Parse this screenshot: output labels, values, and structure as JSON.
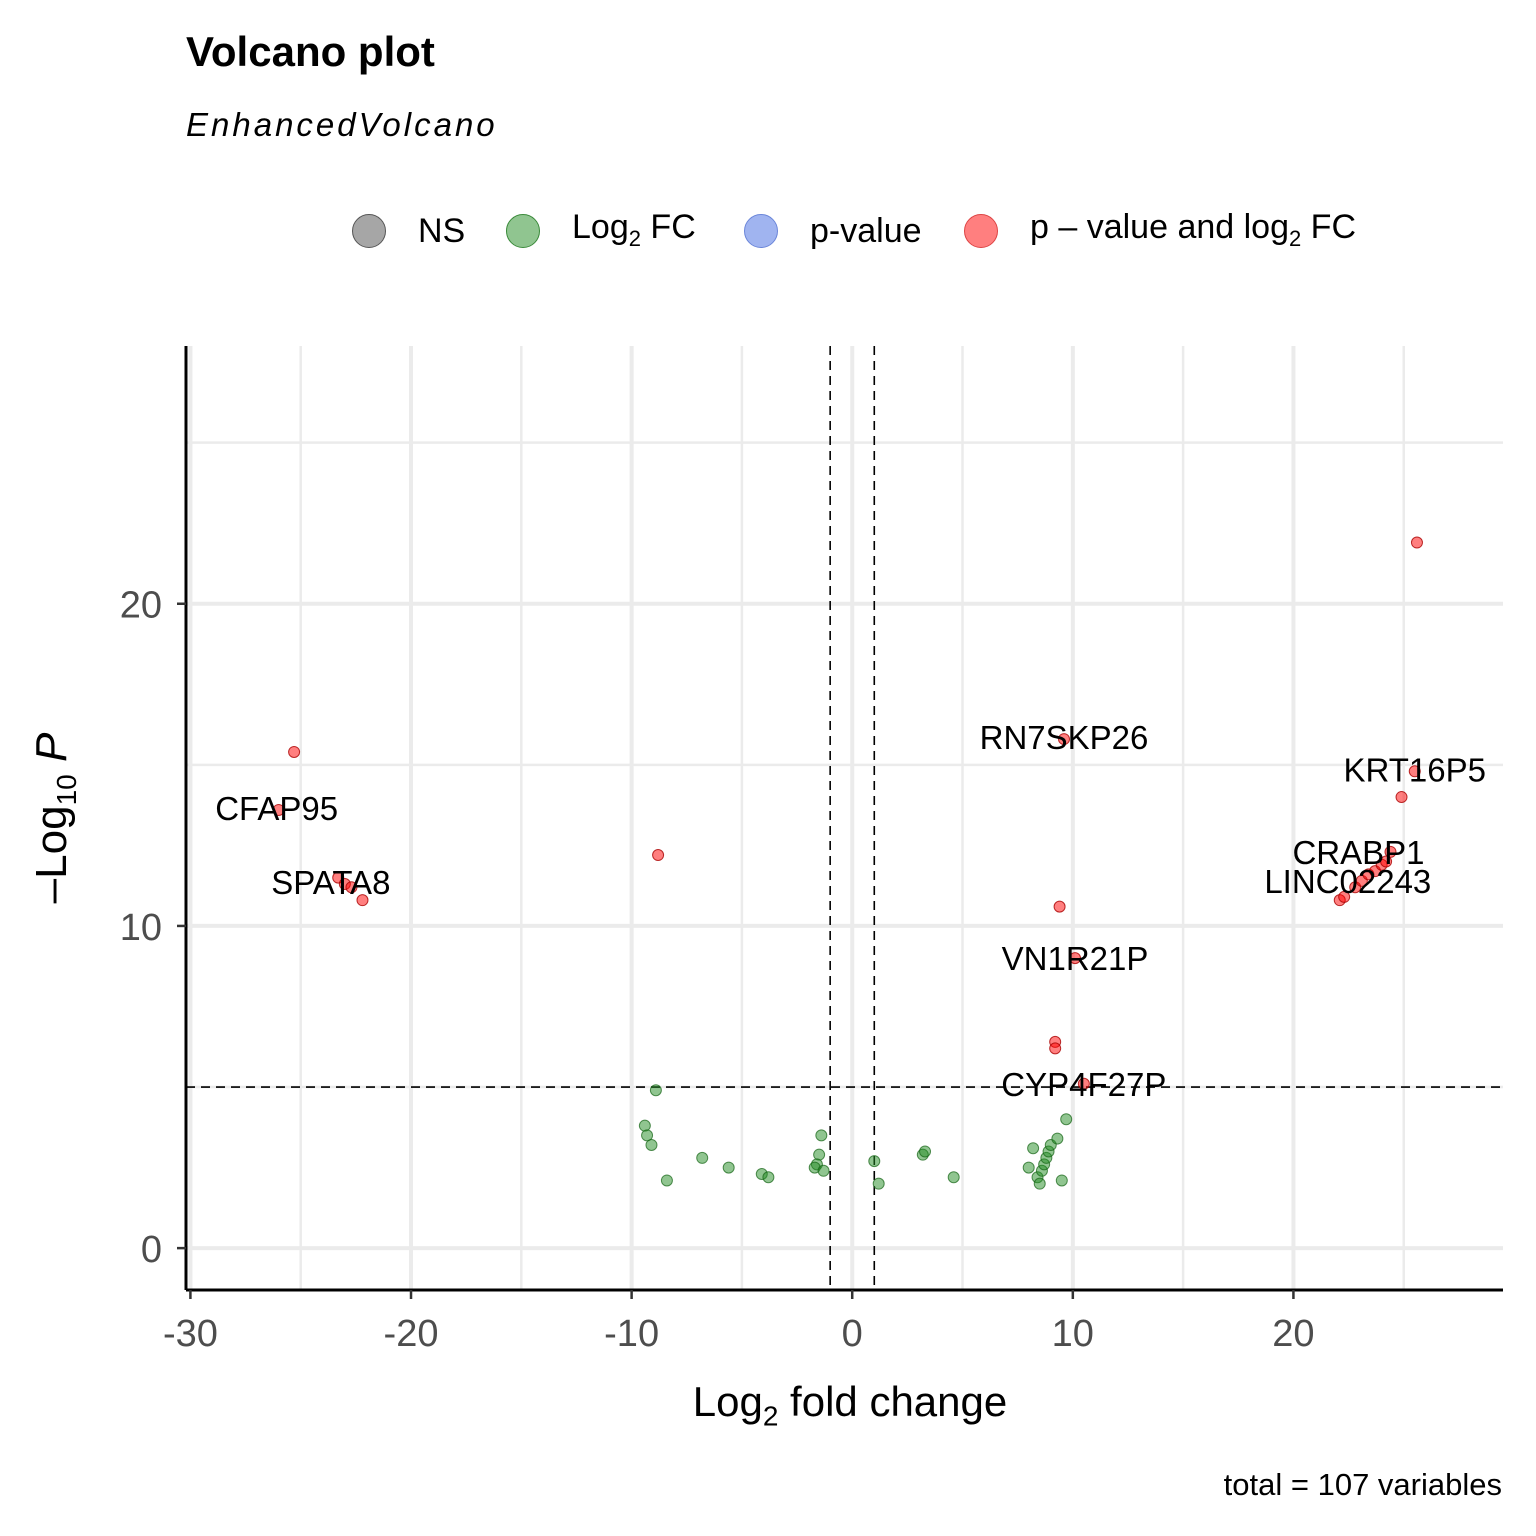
{
  "chart_data": {
    "type": "scatter",
    "title": "Volcano plot",
    "subtitle": "EnhancedVolcano",
    "xlabel": "Log2 fold change",
    "ylabel": "-Log10 P",
    "caption": "total = 107 variables",
    "xlim": [
      -30.2,
      29.5
    ],
    "ylim": [
      -1.3,
      28
    ],
    "xticks": [
      -30,
      -20,
      -10,
      0,
      10,
      20
    ],
    "yticks": [
      0,
      10,
      20
    ],
    "thresholds": {
      "fc_lines": [
        -1,
        1
      ],
      "p_line": 5
    },
    "grid": true,
    "legend_position": "top",
    "legend": [
      {
        "key": "NS",
        "label": "NS",
        "color": "#808080"
      },
      {
        "key": "FC",
        "label": "Log2 FC",
        "color": "#228B22"
      },
      {
        "key": "P",
        "label": "p-value",
        "color": "#4169E1"
      },
      {
        "key": "FC_P",
        "label": "p – value and log2 FC",
        "color": "#FF0000"
      }
    ],
    "series": [
      {
        "name": "Log2 FC",
        "points": [
          [
            -8.9,
            4.9
          ],
          [
            -9.4,
            3.8
          ],
          [
            -9.3,
            3.5
          ],
          [
            -9.1,
            3.2
          ],
          [
            -8.4,
            2.1
          ],
          [
            -6.8,
            2.8
          ],
          [
            -5.6,
            2.5
          ],
          [
            -4.1,
            2.3
          ],
          [
            -3.8,
            2.2
          ],
          [
            -1.4,
            3.5
          ],
          [
            -1.5,
            2.9
          ],
          [
            -1.6,
            2.6
          ],
          [
            -1.7,
            2.5
          ],
          [
            -1.3,
            2.4
          ],
          [
            1.0,
            2.7
          ],
          [
            1.2,
            2.0
          ],
          [
            3.2,
            2.9
          ],
          [
            3.3,
            3.0
          ],
          [
            4.6,
            2.2
          ],
          [
            8.0,
            2.5
          ],
          [
            8.2,
            3.1
          ],
          [
            8.4,
            2.2
          ],
          [
            8.5,
            2.0
          ],
          [
            8.6,
            2.4
          ],
          [
            8.7,
            2.6
          ],
          [
            8.8,
            2.8
          ],
          [
            8.9,
            3.0
          ],
          [
            9.0,
            3.2
          ],
          [
            9.3,
            3.4
          ],
          [
            9.5,
            2.1
          ],
          [
            9.7,
            4.0
          ]
        ]
      },
      {
        "name": "p – value and log2 FC",
        "points": [
          [
            -25.3,
            15.4
          ],
          [
            -26.0,
            13.6
          ],
          [
            -23.3,
            11.5
          ],
          [
            -23.0,
            11.3
          ],
          [
            -22.7,
            11.2
          ],
          [
            -22.2,
            10.8
          ],
          [
            -8.8,
            12.2
          ],
          [
            9.2,
            6.4
          ],
          [
            9.2,
            6.2
          ],
          [
            9.4,
            10.6
          ],
          [
            9.6,
            15.8
          ],
          [
            10.1,
            9.0
          ],
          [
            10.5,
            5.1
          ],
          [
            22.1,
            10.8
          ],
          [
            22.3,
            10.9
          ],
          [
            22.8,
            11.2
          ],
          [
            23.1,
            11.4
          ],
          [
            23.4,
            11.6
          ],
          [
            23.7,
            11.7
          ],
          [
            24.0,
            11.9
          ],
          [
            24.2,
            12.0
          ],
          [
            24.4,
            12.3
          ],
          [
            24.9,
            14.0
          ],
          [
            25.5,
            14.8
          ],
          [
            25.6,
            21.9
          ]
        ]
      }
    ],
    "labels": [
      {
        "text": "CFAP95",
        "x": -26.0,
        "y": 13.6
      },
      {
        "text": "SPATA8",
        "x": -23.0,
        "y": 11.3
      },
      {
        "text": "RN7SKP26",
        "x": 9.6,
        "y": 15.8
      },
      {
        "text": "KRT16P5",
        "x": 25.5,
        "y": 14.8
      },
      {
        "text": "CRABP1",
        "x": 24.4,
        "y": 12.3
      },
      {
        "text": "LINC02243",
        "x": 23.1,
        "y": 11.4
      },
      {
        "text": "VN1R21P",
        "x": 10.1,
        "y": 9.0
      },
      {
        "text": "CYP4F27P",
        "x": 10.5,
        "y": 5.1
      }
    ]
  }
}
